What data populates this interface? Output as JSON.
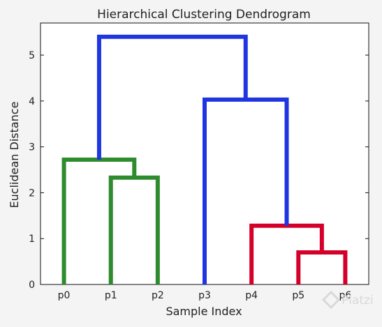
{
  "chart_data": {
    "type": "dendrogram",
    "title": "Hierarchical Clustering Dendrogram",
    "xlabel": "Sample Index",
    "ylabel": "Euclidean Distance",
    "leaves": [
      "p0",
      "p1",
      "p2",
      "p3",
      "p4",
      "p5",
      "p6"
    ],
    "ylim": [
      0,
      5.7
    ],
    "yticks": [
      0,
      1,
      2,
      3,
      4,
      5
    ],
    "grid": false,
    "links": [
      {
        "left": "p5",
        "right": "p6",
        "height": 0.7,
        "left_height": 0,
        "right_height": 0,
        "color": "#d4002a"
      },
      {
        "left": "p4",
        "right": "p5+p6",
        "height": 1.28,
        "left_height": 0,
        "right_height": 0.7,
        "color": "#d4002a"
      },
      {
        "left": "p1",
        "right": "p2",
        "height": 2.33,
        "left_height": 0,
        "right_height": 0,
        "color": "#2e8b2e"
      },
      {
        "left": "p0",
        "right": "p1+p2",
        "height": 2.72,
        "left_height": 0,
        "right_height": 2.33,
        "color": "#2e8b2e"
      },
      {
        "left": "p3",
        "right": "p4+p5+p6",
        "height": 4.03,
        "left_height": 0,
        "right_height": 1.28,
        "color": "#1f35e0"
      },
      {
        "left": "p0+p1+p2",
        "right": "p3+p4+p5+p6",
        "height": 5.4,
        "left_height": 2.72,
        "right_height": 4.03,
        "color": "#1f35e0"
      }
    ]
  },
  "watermark": {
    "text": "Platzi"
  }
}
